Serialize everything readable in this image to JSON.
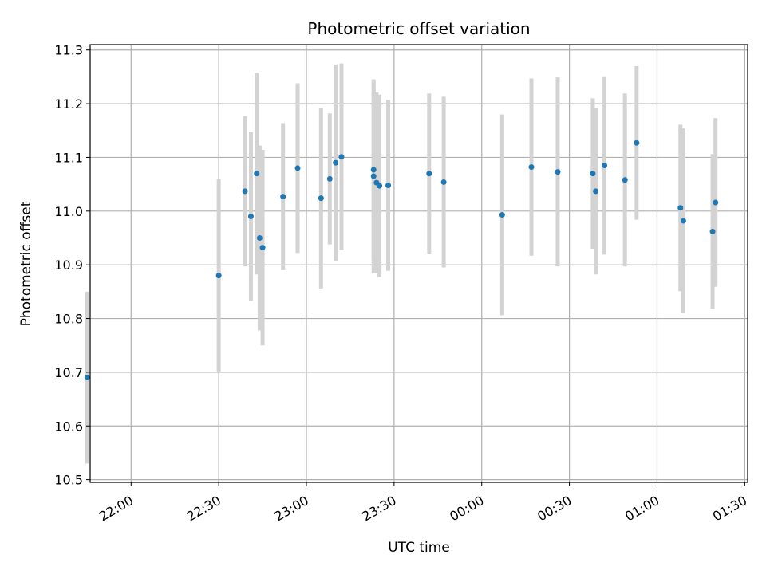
{
  "chart_data": {
    "type": "scatter",
    "title": "Photometric offset variation",
    "xlabel": "UTC time",
    "ylabel": "Photometric offset",
    "x_ticks": [
      "22:00",
      "22:30",
      "23:00",
      "23:30",
      "00:00",
      "00:30",
      "01:00",
      "01:30"
    ],
    "y_ticks": [
      "10.5",
      "10.6",
      "10.7",
      "10.8",
      "10.9",
      "11.0",
      "11.1",
      "11.2",
      "11.3"
    ],
    "xlim": [
      "21:46",
      "01:31"
    ],
    "ylim": [
      10.495,
      11.31
    ],
    "grid": true,
    "colors": {
      "point": "#1f77b4",
      "errorbar": "#d3d3d3",
      "grid": "#b0b0b0"
    },
    "points": [
      {
        "x": "21:45",
        "y": 10.69,
        "err": 0.16
      },
      {
        "x": "22:30",
        "y": 10.88,
        "err": 0.18
      },
      {
        "x": "22:39",
        "y": 11.037,
        "err": 0.14
      },
      {
        "x": "22:41",
        "y": 10.99,
        "err": 0.157
      },
      {
        "x": "22:43",
        "y": 11.07,
        "err": 0.188
      },
      {
        "x": "22:44",
        "y": 10.95,
        "err": 0.172
      },
      {
        "x": "22:45",
        "y": 10.932,
        "err": 0.182
      },
      {
        "x": "22:52",
        "y": 11.027,
        "err": 0.137
      },
      {
        "x": "22:57",
        "y": 11.08,
        "err": 0.158
      },
      {
        "x": "23:05",
        "y": 11.024,
        "err": 0.168
      },
      {
        "x": "23:08",
        "y": 11.06,
        "err": 0.122
      },
      {
        "x": "23:10",
        "y": 11.09,
        "err": 0.183
      },
      {
        "x": "23:12",
        "y": 11.101,
        "err": 0.174
      },
      {
        "x": "23:23",
        "y": 11.065,
        "err": 0.18
      },
      {
        "x": "23:23",
        "y": 11.077,
        "err": 0.168
      },
      {
        "x": "23:24",
        "y": 11.053,
        "err": 0.168
      },
      {
        "x": "23:25",
        "y": 11.047,
        "err": 0.17
      },
      {
        "x": "23:28",
        "y": 11.048,
        "err": 0.159
      },
      {
        "x": "23:42",
        "y": 11.07,
        "err": 0.149
      },
      {
        "x": "23:47",
        "y": 11.054,
        "err": 0.159
      },
      {
        "x": "00:07",
        "y": 10.993,
        "err": 0.187
      },
      {
        "x": "00:17",
        "y": 11.082,
        "err": 0.165
      },
      {
        "x": "00:26",
        "y": 11.073,
        "err": 0.176
      },
      {
        "x": "00:38",
        "y": 11.07,
        "err": 0.14
      },
      {
        "x": "00:39",
        "y": 11.037,
        "err": 0.155
      },
      {
        "x": "00:42",
        "y": 11.085,
        "err": 0.166
      },
      {
        "x": "00:49",
        "y": 11.058,
        "err": 0.161
      },
      {
        "x": "00:53",
        "y": 11.127,
        "err": 0.143
      },
      {
        "x": "01:08",
        "y": 11.006,
        "err": 0.155
      },
      {
        "x": "01:09",
        "y": 10.982,
        "err": 0.172
      },
      {
        "x": "01:19",
        "y": 10.962,
        "err": 0.144
      },
      {
        "x": "01:20",
        "y": 11.016,
        "err": 0.157
      }
    ]
  }
}
